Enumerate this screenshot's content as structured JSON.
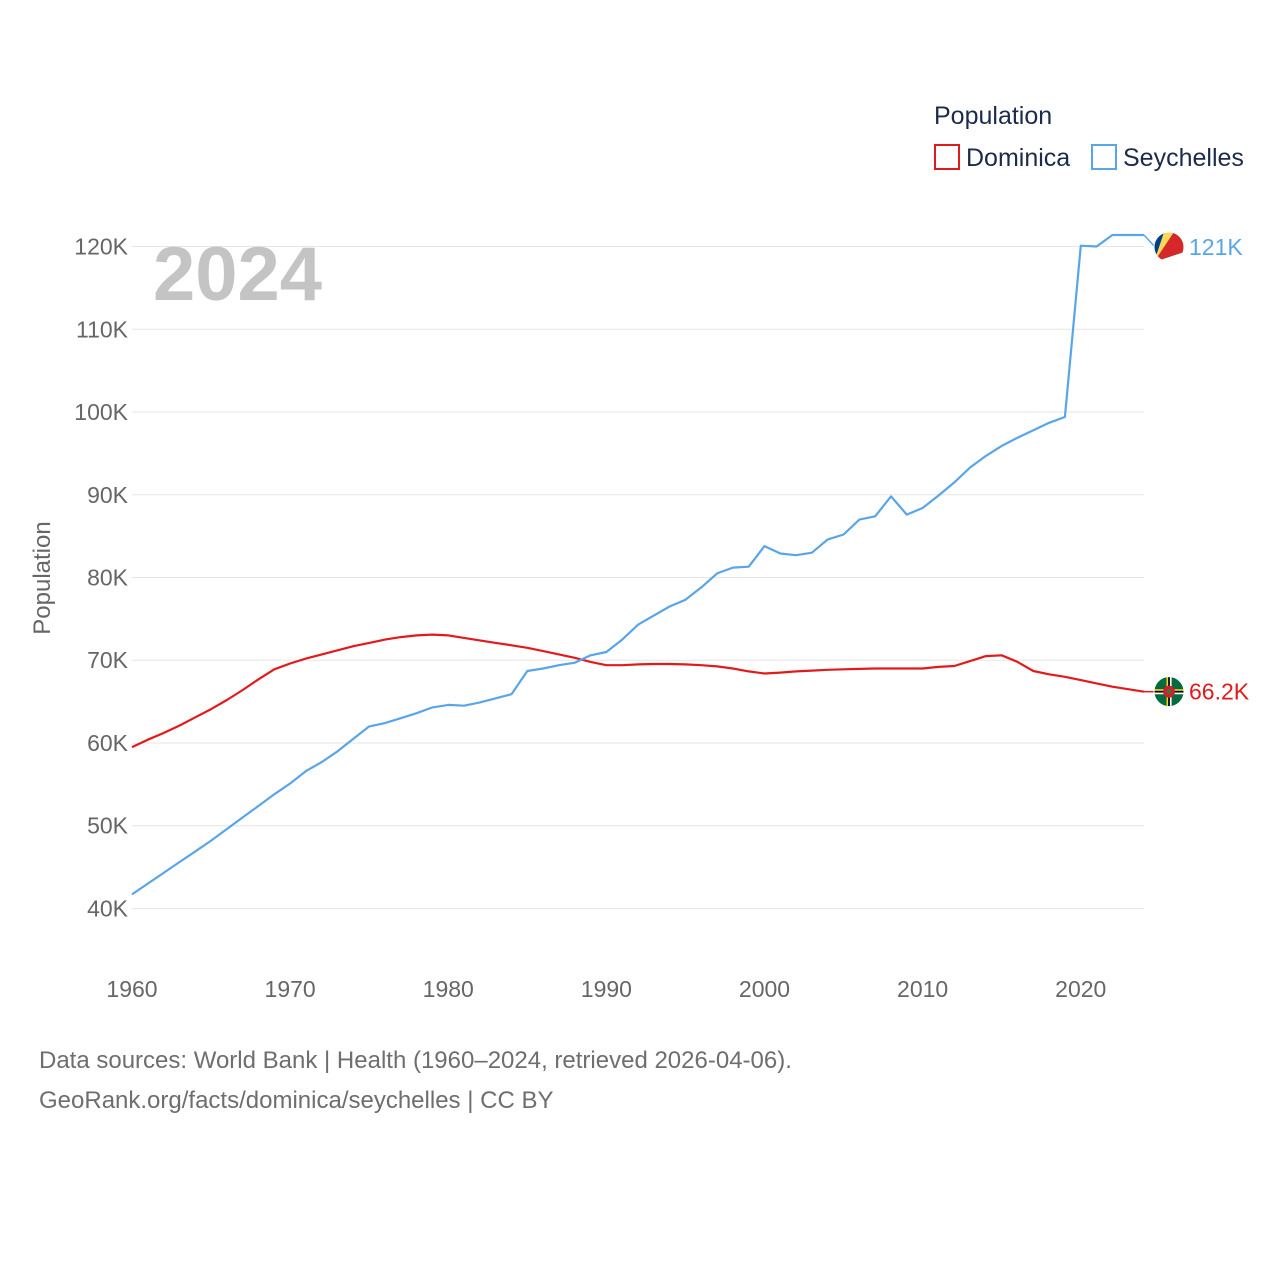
{
  "chart_data": {
    "type": "line",
    "title": "",
    "year_label": "2024",
    "ylabel": "Population",
    "xlabel": "",
    "legend_title": "Population",
    "legend_position": "top-right",
    "x_ticks": [
      "1960",
      "1970",
      "1980",
      "1990",
      "2000",
      "2010",
      "2020"
    ],
    "y_ticks": [
      "40K",
      "50K",
      "60K",
      "70K",
      "80K",
      "90K",
      "100K",
      "110K",
      "120K"
    ],
    "xlim": [
      1960,
      2024
    ],
    "ylim": [
      38000,
      122000
    ],
    "grid": true,
    "x": [
      1960,
      1961,
      1962,
      1963,
      1964,
      1965,
      1966,
      1967,
      1968,
      1969,
      1970,
      1971,
      1972,
      1973,
      1974,
      1975,
      1976,
      1977,
      1978,
      1979,
      1980,
      1981,
      1982,
      1983,
      1984,
      1985,
      1986,
      1987,
      1988,
      1989,
      1990,
      1991,
      1992,
      1993,
      1994,
      1995,
      1996,
      1997,
      1998,
      1999,
      2000,
      2001,
      2002,
      2003,
      2004,
      2005,
      2006,
      2007,
      2008,
      2009,
      2010,
      2011,
      2012,
      2013,
      2014,
      2015,
      2016,
      2017,
      2018,
      2019,
      2020,
      2021,
      2022,
      2023,
      2024
    ],
    "series": [
      {
        "name": "Dominica",
        "color": "#e31a1c",
        "end_label": "66.2K",
        "flag": "dominica-flag-icon",
        "values": [
          59500,
          60400,
          61200,
          62100,
          63100,
          64100,
          65200,
          66400,
          67700,
          68900,
          69600,
          70200,
          70700,
          71200,
          71700,
          72100,
          72500,
          72800,
          73000,
          73100,
          73000,
          72700,
          72400,
          72100,
          71800,
          71500,
          71100,
          70700,
          70300,
          69800,
          69400,
          69400,
          69500,
          69550,
          69550,
          69500,
          69400,
          69250,
          69000,
          68650,
          68400,
          68500,
          68650,
          68750,
          68850,
          68900,
          68950,
          69000,
          69000,
          69000,
          69000,
          69200,
          69300,
          69900,
          70500,
          70600,
          69800,
          68700,
          68300,
          68000,
          67600,
          67200,
          66800,
          66500,
          66200
        ]
      },
      {
        "name": "Seychelles",
        "color": "#5aa5e8",
        "end_label": "121K",
        "flag": "seychelles-flag-icon",
        "values": [
          41700,
          43000,
          44300,
          45600,
          46900,
          48200,
          49600,
          51000,
          52400,
          53800,
          55100,
          56600,
          57700,
          59000,
          60500,
          62000,
          62400,
          63000,
          63600,
          64300,
          64600,
          64500,
          64900,
          65400,
          65900,
          68700,
          69000,
          69400,
          69700,
          70600,
          71000,
          72500,
          74300,
          75400,
          76500,
          77300,
          78800,
          80500,
          81200,
          81300,
          83800,
          82900,
          82700,
          83000,
          84600,
          85200,
          87000,
          87400,
          89800,
          87600,
          88400,
          89900,
          91500,
          93300,
          94700,
          95900,
          96900,
          97800,
          98700,
          99400,
          120100,
          120000,
          121400,
          121400,
          121400
        ]
      }
    ]
  },
  "sources": {
    "line1": "Data sources: World Bank | Health (1960–2024, retrieved 2026-04-06).",
    "line2": "GeoRank.org/facts/dominica/seychelles | CC BY"
  }
}
